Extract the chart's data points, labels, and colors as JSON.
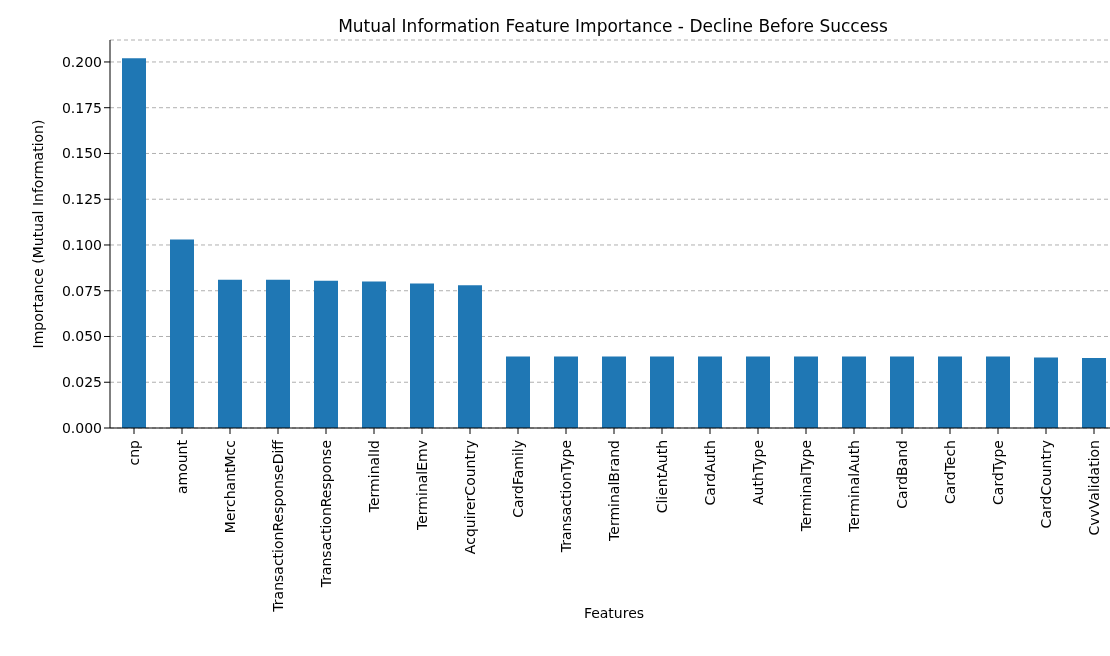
{
  "chart_data": {
    "type": "bar",
    "title": "Mutual Information Feature Importance - Decline Before Success",
    "xlabel": "Features",
    "ylabel": "Importance (Mutual Information)",
    "categories": [
      "cnp",
      "amount",
      "MerchantMcc",
      "TransactionResponseDiff",
      "TransactionResponse",
      "TerminalId",
      "TerminalEmv",
      "AcquirerCountry",
      "CardFamily",
      "TransactionType",
      "TerminalBrand",
      "ClientAuth",
      "CardAuth",
      "AuthType",
      "TerminalType",
      "TerminalAuth",
      "CardBand",
      "CardTech",
      "CardType",
      "CardCountry",
      "CvvValidation"
    ],
    "values": [
      0.202,
      0.103,
      0.081,
      0.081,
      0.0805,
      0.08,
      0.079,
      0.078,
      0.039,
      0.039,
      0.039,
      0.039,
      0.039,
      0.039,
      0.039,
      0.039,
      0.039,
      0.039,
      0.039,
      0.0385,
      0.0383
    ],
    "color": "#1f77b4",
    "ylim": [
      0,
      0.212
    ],
    "yticks": [
      {
        "value": 0,
        "label": "0.000"
      },
      {
        "value": 0.025,
        "label": "0.025"
      },
      {
        "value": 0.05,
        "label": "0.050"
      },
      {
        "value": 0.075,
        "label": "0.075"
      },
      {
        "value": 0.1,
        "label": "0.100"
      },
      {
        "value": 0.125,
        "label": "0.125"
      },
      {
        "value": 0.15,
        "label": "0.150"
      },
      {
        "value": 0.175,
        "label": "0.175"
      },
      {
        "value": 0.2,
        "label": "0.200"
      }
    ],
    "grid": "y"
  }
}
